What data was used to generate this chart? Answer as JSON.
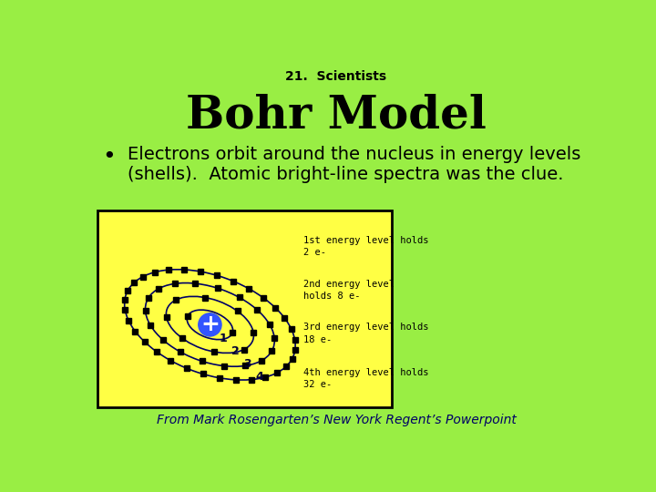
{
  "bg_color": "#99ee44",
  "subtitle": "21.  Scientists",
  "title": "Bohr Model",
  "bullet_text": "Electrons orbit around the nucleus in energy levels\n(shells).  Atomic bright-line spectra was the clue.",
  "diagram_bg": "#ffff44",
  "diagram_border": "#000000",
  "nucleus_color": "#3355ff",
  "nucleus_plus_color": "#ffffff",
  "orbit_color": "#000066",
  "shell_radii": [
    0.22,
    0.42,
    0.62,
    0.82
  ],
  "shell_labels": [
    "1",
    "2",
    "3",
    "4"
  ],
  "electrons_per_shell": [
    2,
    8,
    18,
    32
  ],
  "energy_level_texts": [
    "1st energy level holds\n2 e-",
    "2nd energy level\nholds 8 e-",
    "3rd energy level holds\n18 e-",
    "4th energy level holds\n32 e-"
  ],
  "footer": "From Mark Rosengarten’s New York Regent’s Powerpoint"
}
